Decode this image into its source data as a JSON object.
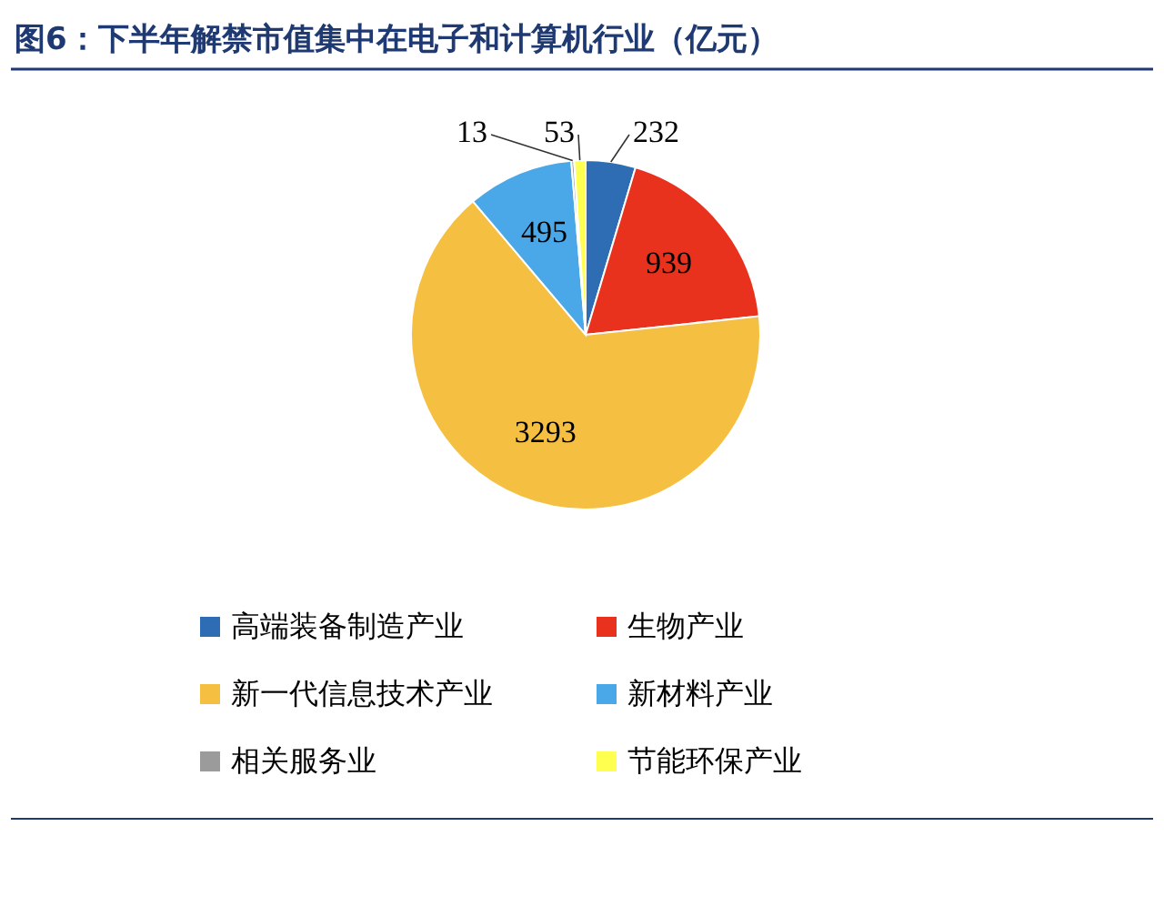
{
  "chart_data": {
    "type": "pie",
    "title": "图6：下半年解禁市值集中在电子和计算机行业（亿元）",
    "categories": [
      "高端装备制造产业",
      "生物产业",
      "新一代信息技术产业",
      "新材料产业",
      "相关服务业",
      "节能环保产业"
    ],
    "values": [
      232,
      939,
      3293,
      495,
      13,
      53
    ],
    "colors": [
      "#2e6db4",
      "#e8321e",
      "#f5bf42",
      "#4aa8e8",
      "#9b9b9b",
      "#ffff4f"
    ],
    "data_labels": true,
    "legend": "bottom"
  }
}
